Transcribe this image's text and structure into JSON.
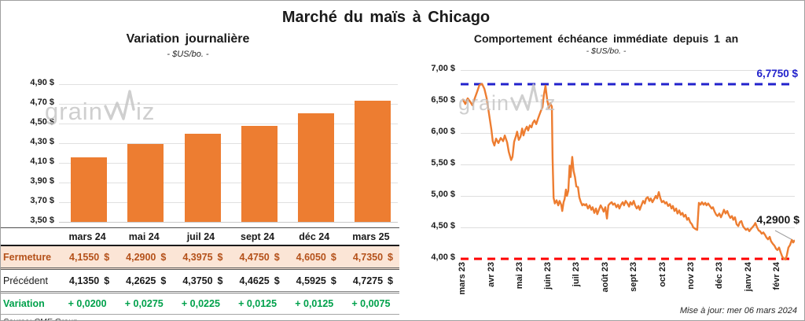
{
  "header": {
    "title": "Marché du maïs à Chicago"
  },
  "watermark": {
    "pre": "grain",
    "post": "iz"
  },
  "footer": {
    "updated": "Mise à jour: mer 06 mars 2024"
  },
  "table": {
    "columns": [
      "mars 24",
      "mai 24",
      "juil 24",
      "sept 24",
      "déc 24",
      "mars 25"
    ],
    "rows": [
      {
        "key": "fermeture",
        "label": "Fermeture",
        "values": [
          "4,1550",
          "4,2900",
          "4,3975",
          "4,4750",
          "4,6050",
          "4,7350"
        ],
        "suffix": "$",
        "text_color": "#b4511a",
        "bg_color": "#fbe5d6"
      },
      {
        "key": "precedent",
        "label": "Précédent",
        "values": [
          "4,1350",
          "4,2625",
          "4,3750",
          "4,4625",
          "4,5925",
          "4,7275"
        ],
        "suffix": "$",
        "text_color": "#1a1a1a",
        "bg_color": "#ffffff"
      },
      {
        "key": "variation",
        "label": "Variation",
        "values": [
          "+ 0,0200",
          "+ 0,0275",
          "+ 0,0225",
          "+ 0,0125",
          "+ 0,0125",
          "+ 0,0075"
        ],
        "suffix": "",
        "text_color": "#00a14b",
        "bg_color": "#ffffff"
      }
    ],
    "source": "Source: CME Group"
  },
  "chart_data": [
    {
      "type": "bar",
      "title": "Variation journalière",
      "subtitle": "- $US/bo. -",
      "categories": [
        "mars 24",
        "mai 24",
        "juil 24",
        "sept 24",
        "déc 24",
        "mars 25"
      ],
      "values": [
        4.155,
        4.29,
        4.3975,
        4.475,
        4.605,
        4.735
      ],
      "ylim": [
        3.5,
        4.9
      ],
      "ytick_step": 0.2,
      "ytick_labels": [
        "4,90 $",
        "4,70 $",
        "4,50 $",
        "4,30 $",
        "4,10 $",
        "3,90 $",
        "3,70 $",
        "3,50 $"
      ],
      "bar_color": "#ed7d31",
      "grid": true,
      "legend": "none"
    },
    {
      "type": "line",
      "title": "Comportement échéance immédiate depuis 1 an",
      "subtitle": "- $US/bo. -",
      "x_labels": [
        "mars 23",
        "avr 23",
        "mai 23",
        "juin 23",
        "juil 23",
        "août 23",
        "sept 23",
        "oct 23",
        "nov 23",
        "déc 23",
        "janv 24",
        "févr 24"
      ],
      "xtick_pct": [
        0.7,
        9.3,
        17.8,
        26.4,
        34.9,
        43.5,
        52.1,
        60.6,
        69.2,
        77.7,
        86.3,
        94.8
      ],
      "ylim": [
        4.0,
        7.0
      ],
      "ytick_step": 0.5,
      "ytick_labels": [
        "7,00 $",
        "6,50 $",
        "6,00 $",
        "5,50 $",
        "5,00 $",
        "4,50 $",
        "4,00 $"
      ],
      "line_color": "#ed7d31",
      "upper_line": {
        "value": 6.775,
        "label": "6,7750 $",
        "color": "#2222cc"
      },
      "lower_line": {
        "value": 4.0,
        "color": "#ff0000"
      },
      "last_value": 4.29,
      "last_label": "4,2900 $",
      "grid": true,
      "legend": "none",
      "points": [
        [
          0.7,
          6.53
        ],
        [
          1.4,
          6.46
        ],
        [
          2.1,
          6.55
        ],
        [
          2.8,
          6.5
        ],
        [
          3.5,
          6.44
        ],
        [
          4.2,
          6.55
        ],
        [
          4.9,
          6.65
        ],
        [
          5.6,
          6.76
        ],
        [
          6.4,
          6.78
        ],
        [
          7.1,
          6.7
        ],
        [
          7.8,
          6.55
        ],
        [
          8.5,
          6.3
        ],
        [
          9.2,
          6.05
        ],
        [
          9.6,
          5.87
        ],
        [
          10.1,
          5.8
        ],
        [
          10.6,
          5.91
        ],
        [
          11.3,
          5.84
        ],
        [
          12.0,
          5.92
        ],
        [
          12.7,
          5.87
        ],
        [
          13.2,
          5.96
        ],
        [
          13.9,
          5.85
        ],
        [
          14.4,
          5.7
        ],
        [
          15.1,
          5.57
        ],
        [
          15.5,
          5.62
        ],
        [
          16.0,
          5.86
        ],
        [
          16.5,
          5.94
        ],
        [
          16.9,
          6.02
        ],
        [
          17.4,
          5.89
        ],
        [
          17.9,
          5.94
        ],
        [
          18.4,
          6.07
        ],
        [
          18.8,
          5.96
        ],
        [
          19.3,
          6.05
        ],
        [
          19.8,
          6.1
        ],
        [
          20.2,
          6.04
        ],
        [
          20.7,
          6.12
        ],
        [
          21.2,
          6.09
        ],
        [
          21.6,
          6.16
        ],
        [
          22.1,
          6.2
        ],
        [
          22.6,
          6.14
        ],
        [
          23.1,
          6.22
        ],
        [
          23.5,
          6.28
        ],
        [
          24.0,
          6.35
        ],
        [
          24.5,
          6.41
        ],
        [
          24.9,
          6.6
        ],
        [
          25.4,
          6.75
        ],
        [
          25.9,
          6.52
        ],
        [
          26.4,
          6.4
        ],
        [
          26.8,
          6.47
        ],
        [
          27.3,
          6.42
        ],
        [
          27.5,
          5.6
        ],
        [
          27.8,
          4.97
        ],
        [
          28.2,
          4.88
        ],
        [
          28.7,
          4.93
        ],
        [
          29.2,
          4.85
        ],
        [
          29.6,
          4.92
        ],
        [
          30.1,
          4.86
        ],
        [
          30.4,
          4.76
        ],
        [
          30.8,
          4.9
        ],
        [
          31.1,
          4.95
        ],
        [
          31.5,
          5.1
        ],
        [
          31.8,
          5.0
        ],
        [
          32.2,
          5.08
        ],
        [
          32.6,
          5.48
        ],
        [
          32.9,
          5.3
        ],
        [
          33.4,
          5.62
        ],
        [
          33.8,
          5.4
        ],
        [
          34.2,
          5.3
        ],
        [
          34.6,
          5.15
        ],
        [
          35.1,
          5.14
        ],
        [
          35.5,
          4.98
        ],
        [
          35.9,
          4.91
        ],
        [
          36.4,
          4.85
        ],
        [
          36.8,
          4.87
        ],
        [
          37.2,
          4.85
        ],
        [
          37.6,
          4.87
        ],
        [
          38.1,
          4.8
        ],
        [
          38.6,
          4.85
        ],
        [
          39.1,
          4.78
        ],
        [
          39.5,
          4.82
        ],
        [
          40.0,
          4.73
        ],
        [
          40.5,
          4.8
        ],
        [
          40.9,
          4.71
        ],
        [
          41.4,
          4.78
        ],
        [
          41.9,
          4.85
        ],
        [
          42.4,
          4.8
        ],
        [
          42.8,
          4.75
        ],
        [
          43.3,
          4.82
        ],
        [
          43.8,
          4.64
        ],
        [
          44.2,
          4.85
        ],
        [
          44.7,
          4.88
        ],
        [
          45.2,
          4.9
        ],
        [
          45.6,
          4.86
        ],
        [
          46.1,
          4.88
        ],
        [
          46.6,
          4.82
        ],
        [
          47.1,
          4.86
        ],
        [
          47.5,
          4.8
        ],
        [
          48.0,
          4.86
        ],
        [
          48.5,
          4.9
        ],
        [
          48.9,
          4.85
        ],
        [
          49.4,
          4.92
        ],
        [
          49.9,
          4.88
        ],
        [
          50.4,
          4.83
        ],
        [
          50.8,
          4.9
        ],
        [
          51.3,
          4.86
        ],
        [
          51.8,
          4.92
        ],
        [
          52.2,
          4.85
        ],
        [
          52.7,
          4.8
        ],
        [
          53.2,
          4.84
        ],
        [
          53.6,
          4.78
        ],
        [
          54.1,
          4.85
        ],
        [
          54.6,
          4.92
        ],
        [
          55.1,
          4.88
        ],
        [
          55.5,
          4.96
        ],
        [
          56.0,
          4.98
        ],
        [
          56.5,
          4.92
        ],
        [
          56.9,
          4.96
        ],
        [
          57.4,
          4.9
        ],
        [
          57.9,
          4.95
        ],
        [
          58.4,
          5.0
        ],
        [
          58.8,
          4.96
        ],
        [
          59.3,
          5.06
        ],
        [
          59.8,
          4.96
        ],
        [
          60.2,
          4.9
        ],
        [
          60.7,
          4.92
        ],
        [
          61.2,
          4.88
        ],
        [
          61.6,
          4.9
        ],
        [
          62.1,
          4.84
        ],
        [
          62.6,
          4.87
        ],
        [
          63.1,
          4.8
        ],
        [
          63.5,
          4.84
        ],
        [
          64.0,
          4.76
        ],
        [
          64.5,
          4.8
        ],
        [
          64.9,
          4.72
        ],
        [
          65.4,
          4.77
        ],
        [
          65.9,
          4.7
        ],
        [
          66.4,
          4.73
        ],
        [
          66.8,
          4.67
        ],
        [
          67.3,
          4.7
        ],
        [
          67.8,
          4.62
        ],
        [
          68.2,
          4.65
        ],
        [
          68.7,
          4.58
        ],
        [
          69.2,
          4.55
        ],
        [
          69.6,
          4.5
        ],
        [
          70.4,
          4.47
        ],
        [
          70.8,
          4.46
        ],
        [
          71.3,
          4.89
        ],
        [
          71.8,
          4.86
        ],
        [
          72.2,
          4.9
        ],
        [
          72.7,
          4.86
        ],
        [
          73.2,
          4.89
        ],
        [
          73.6,
          4.85
        ],
        [
          74.1,
          4.88
        ],
        [
          74.6,
          4.84
        ],
        [
          75.1,
          4.8
        ],
        [
          75.5,
          4.82
        ],
        [
          76.0,
          4.75
        ],
        [
          76.5,
          4.7
        ],
        [
          76.9,
          4.68
        ],
        [
          77.4,
          4.72
        ],
        [
          77.9,
          4.66
        ],
        [
          78.4,
          4.72
        ],
        [
          78.8,
          4.78
        ],
        [
          79.3,
          4.72
        ],
        [
          79.8,
          4.76
        ],
        [
          80.2,
          4.7
        ],
        [
          80.7,
          4.65
        ],
        [
          81.2,
          4.68
        ],
        [
          81.6,
          4.62
        ],
        [
          82.1,
          4.66
        ],
        [
          82.6,
          4.55
        ],
        [
          83.1,
          4.52
        ],
        [
          83.5,
          4.58
        ],
        [
          84.0,
          4.6
        ],
        [
          84.5,
          4.52
        ],
        [
          84.9,
          4.49
        ],
        [
          85.4,
          4.46
        ],
        [
          85.9,
          4.48
        ],
        [
          86.4,
          4.44
        ],
        [
          86.8,
          4.47
        ],
        [
          87.3,
          4.5
        ],
        [
          87.8,
          4.53
        ],
        [
          88.2,
          4.57
        ],
        [
          88.7,
          4.5
        ],
        [
          89.2,
          4.45
        ],
        [
          89.6,
          4.44
        ],
        [
          90.1,
          4.4
        ],
        [
          90.6,
          4.42
        ],
        [
          91.1,
          4.38
        ],
        [
          91.5,
          4.34
        ],
        [
          92.0,
          4.31
        ],
        [
          92.5,
          4.35
        ],
        [
          92.9,
          4.28
        ],
        [
          93.4,
          4.24
        ],
        [
          93.9,
          4.21
        ],
        [
          94.4,
          4.16
        ],
        [
          94.8,
          4.14
        ],
        [
          95.3,
          4.18
        ],
        [
          95.8,
          4.1
        ],
        [
          96.2,
          4.04
        ],
        [
          96.7,
          4.0
        ],
        [
          97.2,
          3.99
        ],
        [
          97.6,
          4.05
        ],
        [
          98.1,
          4.18
        ],
        [
          98.6,
          4.22
        ],
        [
          99.1,
          4.3
        ],
        [
          99.5,
          4.26
        ],
        [
          100.0,
          4.29
        ]
      ]
    }
  ]
}
